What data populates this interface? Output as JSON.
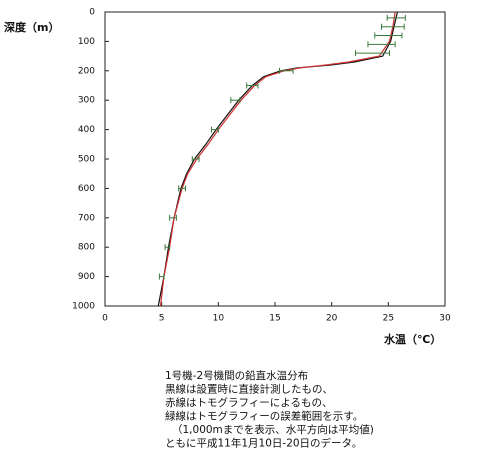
{
  "chart_data": {
    "type": "line",
    "y_label": "深度（m）",
    "x_label": "水温（℃）",
    "depths": [
      0,
      50,
      100,
      150,
      170,
      180,
      190,
      200,
      220,
      250,
      300,
      350,
      400,
      450,
      500,
      550,
      600,
      700,
      800,
      900,
      1000
    ],
    "series": [
      {
        "color": "#111111",
        "values": [
          25.8,
          25.5,
          25.2,
          24.5,
          22,
          20,
          17,
          15.5,
          14,
          13,
          11.8,
          10.8,
          9.8,
          8.9,
          7.9,
          7.2,
          6.7,
          6.1,
          5.6,
          5.2,
          4.7
        ]
      },
      {
        "color": "#d03030",
        "values": [
          25.6,
          25.4,
          25.1,
          24.2,
          21.5,
          19.5,
          17.2,
          15.8,
          14.2,
          13.2,
          12.0,
          11.0,
          10.0,
          9.1,
          8.1,
          7.3,
          6.8,
          6.1,
          5.7,
          5.2,
          4.9
        ]
      }
    ],
    "error_bars": {
      "color": "#3a7a3a",
      "depths": [
        20,
        50,
        80,
        110,
        140,
        200,
        250,
        300,
        400,
        500,
        600,
        700,
        800,
        900
      ],
      "values": [
        25.7,
        25.4,
        25.0,
        24.4,
        23.6,
        16,
        13.0,
        11.5,
        9.7,
        8.0,
        6.8,
        6.0,
        5.5,
        5.0
      ],
      "errors": [
        0.8,
        1.0,
        1.2,
        1.2,
        1.5,
        0.6,
        0.5,
        0.4,
        0.3,
        0.3,
        0.3,
        0.3,
        0.2,
        0.2
      ]
    },
    "xlim": [
      0,
      30
    ],
    "xticks": [
      0,
      5,
      10,
      15,
      20,
      25,
      30
    ],
    "ylim": [
      1000,
      0
    ],
    "yticks": [
      0,
      100,
      200,
      300,
      400,
      500,
      600,
      700,
      800,
      900,
      1000
    ],
    "grid": false,
    "caption": [
      "1号機-2号機間の鉛直水温分布",
      "黒線は設置時に直接計測したもの、",
      "赤線はトモグラフィーによるもの、",
      "緑線はトモグラフィーの誤差範囲を示す。",
      "（1,000mまでを表示、水平方向は平均値)",
      "ともに平成11年1月10日-20日のデータ。"
    ]
  }
}
